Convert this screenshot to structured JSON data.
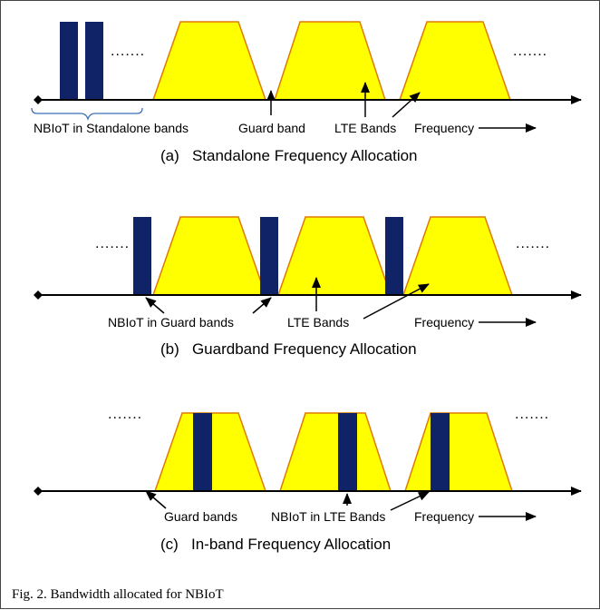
{
  "panels": [
    {
      "id": "a",
      "caption": "(a)   Standalone Frequency Allocation",
      "labels": {
        "nbiot": "NBIoT in Standalone bands",
        "guard": "Guard band",
        "lte": "LTE Bands",
        "frequency": "Frequency"
      }
    },
    {
      "id": "b",
      "caption": "(b)   Guardband Frequency Allocation",
      "labels": {
        "nbiot": "NBIoT in Guard bands",
        "lte": "LTE Bands",
        "frequency": "Frequency"
      }
    },
    {
      "id": "c",
      "caption": "(c)   In-band Frequency Allocation",
      "labels": {
        "guard": "Guard bands",
        "nbiot": "NBIoT in LTE Bands",
        "frequency": "Frequency"
      }
    }
  ],
  "ellipsis": ".......",
  "figure_caption": "Fig. 2. Bandwidth allocated for NBIoT",
  "colors": {
    "lte_fill": "#ffff00",
    "lte_stroke": "#e07b00",
    "nbiot_fill": "#0f2366",
    "axis": "#000000"
  }
}
